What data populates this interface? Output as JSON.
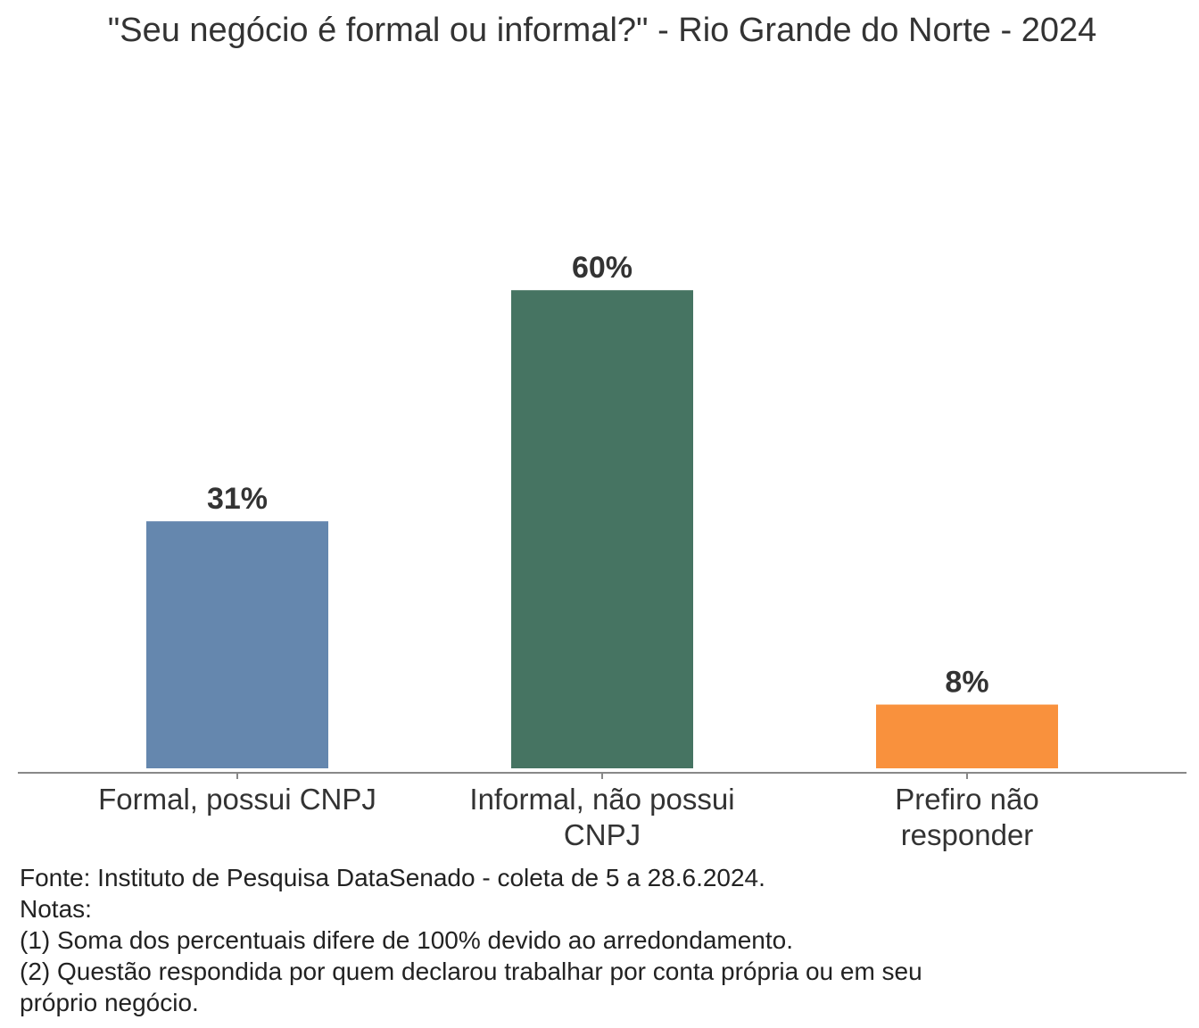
{
  "chart_data": {
    "type": "bar",
    "title": "\"Seu negócio é formal ou informal?\" - Rio Grande do Norte - 2024",
    "categories": [
      "Formal, possui CNPJ",
      "Informal, não possui CNPJ",
      "Prefiro não responder"
    ],
    "category_lines": [
      [
        "Formal, possui CNPJ"
      ],
      [
        "Informal, não possui",
        "CNPJ"
      ],
      [
        "Prefiro não",
        "responder"
      ]
    ],
    "values": [
      31,
      60,
      8
    ],
    "value_labels": [
      "31%",
      "60%",
      "8%"
    ],
    "colors": [
      "#6587ae",
      "#467462",
      "#f9913d"
    ],
    "xlabel": "",
    "ylabel": "",
    "ylim": [
      0,
      100
    ],
    "grid": false,
    "legend": "none"
  },
  "notes": {
    "source": "Fonte: Instituto de Pesquisa DataSenado - coleta de 5 a 28.6.2024.",
    "heading": "Notas:",
    "note1": "(1) Soma dos percentuais difere de 100% devido ao arredondamento.",
    "note2_line1": "(2) Questão respondida por quem declarou trabalhar por conta própria ou em seu",
    "note2_line2": "próprio negócio."
  }
}
